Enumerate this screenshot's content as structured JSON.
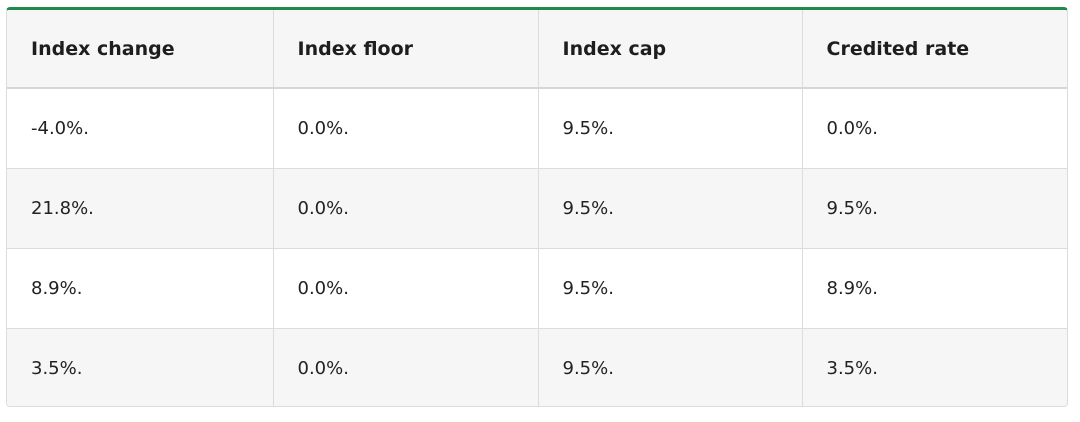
{
  "table": {
    "headers": [
      "Index change",
      "Index floor",
      "Index cap",
      "Credited rate"
    ],
    "rows": [
      [
        "-4.0%.",
        "0.0%.",
        "9.5%.",
        "0.0%."
      ],
      [
        "21.8%.",
        "0.0%.",
        "9.5%.",
        "9.5%."
      ],
      [
        "8.9%.",
        "0.0%.",
        "9.5%.",
        "8.9%."
      ],
      [
        "3.5%.",
        "0.0%.",
        "9.5%.",
        "3.5%."
      ]
    ]
  },
  "colors": {
    "accent_border": "#1f8a4c",
    "header_bg": "#f6f6f6",
    "stripe_bg": "#f6f6f6",
    "row_bg": "#ffffff",
    "grid": "#dcdcdc"
  }
}
